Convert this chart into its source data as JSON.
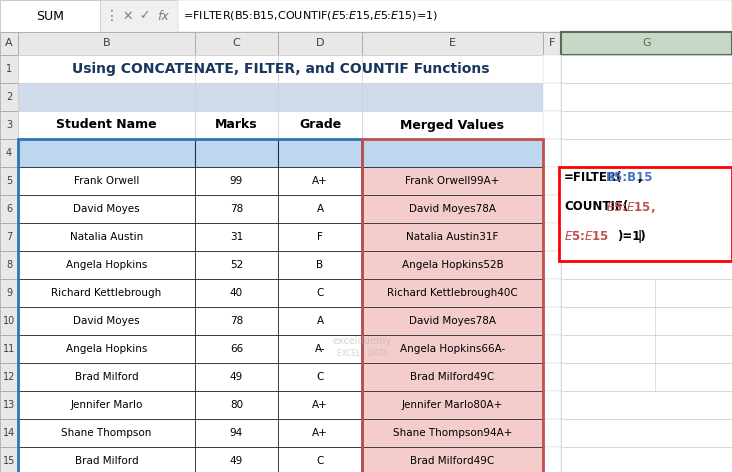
{
  "title": "Using CONCATENATE, FILTER, and COUNTIF Functions",
  "formula_bar_text": "=FILTER(B5:B15,COUNTIF($E$5:$E$15,$E$5:$E$15)=1)",
  "cell_ref": "SUM",
  "col_headers": [
    "A",
    "B",
    "C",
    "D",
    "E",
    "F",
    "G"
  ],
  "table_headers": [
    "Student Name",
    "Marks",
    "Grade",
    "Merged Values"
  ],
  "data_rows": [
    [
      "Frank Orwell",
      "99",
      "A+",
      "Frank Orwell99A+"
    ],
    [
      "David Moyes",
      "78",
      "A",
      "David Moyes78A"
    ],
    [
      "Natalia Austin",
      "31",
      "F",
      "Natalia Austin31F"
    ],
    [
      "Angela Hopkins",
      "52",
      "B",
      "Angela Hopkins52B"
    ],
    [
      "Richard Kettlebrough",
      "40",
      "C",
      "Richard Kettlebrough40C"
    ],
    [
      "David Moyes",
      "78",
      "A",
      "David Moyes78A"
    ],
    [
      "Angela Hopkins",
      "66",
      "A-",
      "Angela Hopkins66A-"
    ],
    [
      "Brad Milford",
      "49",
      "C",
      "Brad Milford49C"
    ],
    [
      "Jennifer Marlo",
      "80",
      "A+",
      "Jennifer Marlo80A+"
    ],
    [
      "Shane Thompson",
      "94",
      "A+",
      "Shane Thompson94A+"
    ],
    [
      "Brad Milford",
      "49",
      "C",
      "Brad Milford49C"
    ]
  ],
  "bg_color": "#FFFFFF",
  "title_bg": "#CFDAEA",
  "title_color": "#17375E",
  "table_header_bg": "#BDD7EE",
  "merged_col_bg": "#F4CCCC",
  "formula_box_border": "#FF0000",
  "formula_box_bg": "#FFFFFF",
  "blue_border": "#2E75B6",
  "red_border": "#C0504D",
  "watermark_color": "#AAAAAA",
  "g_col_active_color": "#507050",
  "g_col_active_bg": "#C8D8C8"
}
